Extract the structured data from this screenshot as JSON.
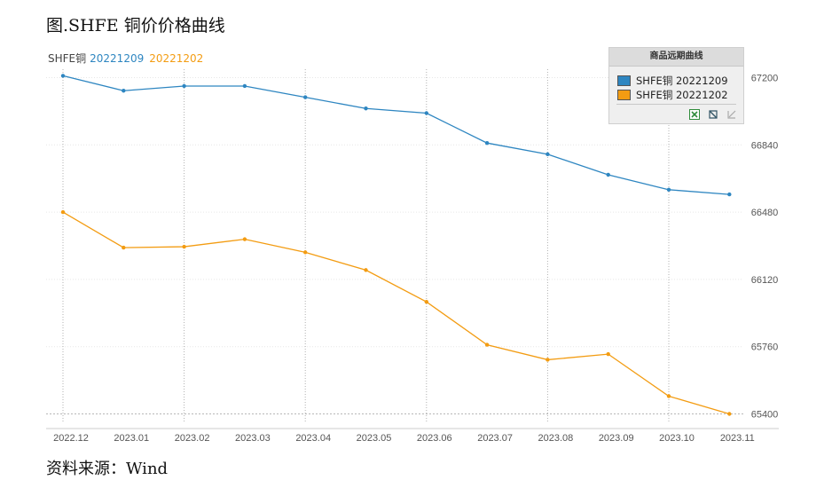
{
  "figure_title": "图.SHFE 铜价价格曲线",
  "source_label": "资料来源：Wind",
  "series_header": {
    "prefix": "SHFE铜",
    "series1": "20221209",
    "series2": "20221202"
  },
  "legend": {
    "title": "商品远期曲线",
    "items": [
      "SHFE铜 20221209",
      "SHFE铜 20221202"
    ],
    "buttons": [
      "excel-icon",
      "export-icon",
      "collapse-icon"
    ]
  },
  "colors": {
    "series1": "#2e86c1",
    "series2": "#f39c12",
    "grid": "#e3e3e3",
    "vgrid": "#b0b0b0"
  },
  "chart_data": {
    "type": "line",
    "categories": [
      "2022.12",
      "2023.01",
      "2023.02",
      "2023.03",
      "2023.04",
      "2023.05",
      "2023.06",
      "2023.07",
      "2023.08",
      "2023.09",
      "2023.10",
      "2023.11"
    ],
    "y_ticks": [
      65400,
      65760,
      66120,
      66480,
      66840,
      67200
    ],
    "ylim": [
      65400,
      67200
    ],
    "series": [
      {
        "name": "SHFE铜 20221209",
        "values": [
          67210,
          67130,
          67155,
          67155,
          67095,
          67035,
          67010,
          66850,
          66790,
          66680,
          66600,
          66575
        ]
      },
      {
        "name": "SHFE铜 20221202",
        "values": [
          66480,
          66290,
          66295,
          66335,
          66265,
          66170,
          66000,
          65770,
          65690,
          65720,
          65495,
          65400
        ]
      }
    ]
  }
}
